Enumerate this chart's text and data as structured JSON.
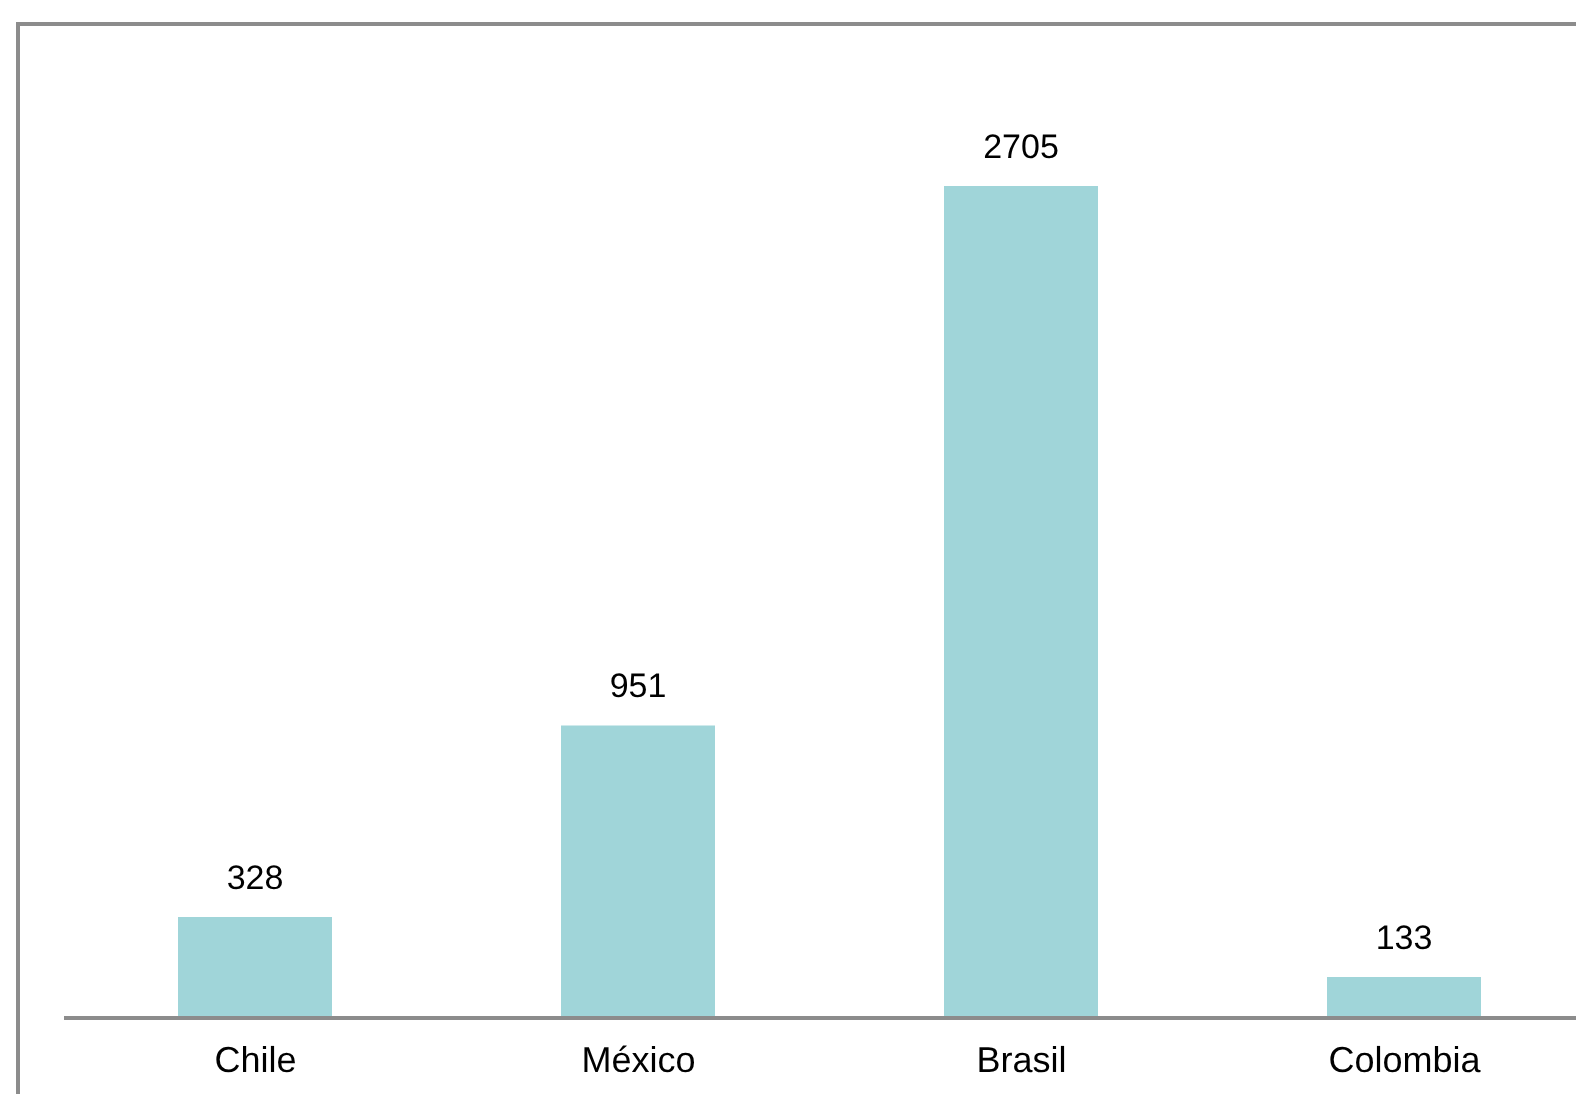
{
  "chart_data": {
    "type": "bar",
    "categories": [
      "Chile",
      "México",
      "Brasil",
      "Colombia"
    ],
    "values": [
      328,
      951,
      2705,
      133
    ],
    "color": "#a0d5d9",
    "data_labels": true
  }
}
